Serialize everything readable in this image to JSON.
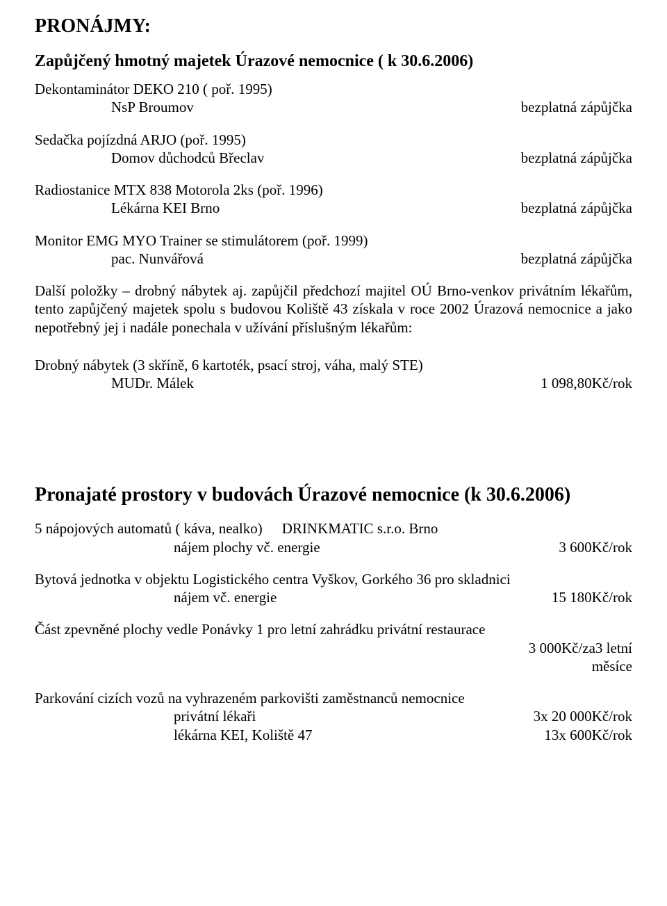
{
  "sec1": {
    "title": "PRONÁJMY:",
    "subtitle": "Zapůjčený hmotný majetek Úrazové nemocnice ( k 30.6.2006)",
    "items": [
      {
        "line1": "Dekontaminátor DEKO 210 ( poř. 1995)",
        "line2_left": "NsP Broumov",
        "line2_right": "bezplatná zápůjčka"
      },
      {
        "line1": "Sedačka pojízdná ARJO (poř. 1995)",
        "line2_left": "Domov důchodců Břeclav",
        "line2_right": "bezplatná zápůjčka"
      },
      {
        "line1": "Radiostanice MTX 838 Motorola  2ks (poř. 1996)",
        "line2_left": "Lékárna KEI Brno",
        "line2_right": "bezplatná zápůjčka"
      },
      {
        "line1": "Monitor EMG MYO Trainer se stimulátorem (poř. 1999)",
        "line2_left": "pac. Nunvářová",
        "line2_right": "bezplatná zápůjčka"
      }
    ],
    "paragraph": "Další položky – drobný nábytek aj. zapůjčil předchozí majitel OÚ Brno-venkov privátním lékařům, tento zapůjčený majetek spolu s budovou Koliště 43 získala v roce 2002 Úrazová nemocnice a jako nepotřebný jej i nadále ponechala v užívání příslušným lékařům:",
    "furniture": {
      "line1": "Drobný nábytek (3 skříně, 6 kartoték, psací stroj, váha, malý STE)",
      "line2_left": "MUDr. Málek",
      "line2_right": "1 098,80Kč/rok"
    }
  },
  "sec2": {
    "title": "Pronajaté prostory  v budovách Úrazové nemocnice (k 30.6.2006)",
    "vending": {
      "line1_left": "5 nápojových automatů ( káva, nealko)",
      "line1_right": "DRINKMATIC s.r.o. Brno",
      "line2_left": "nájem plochy vč. energie",
      "line2_right": "3 600Kč/rok"
    },
    "flat": {
      "line1": "Bytová jednotka v objektu Logistického centra Vyškov, Gorkého 36 pro skladnici",
      "line2_left": "nájem vč. energie",
      "line2_right": "15 180Kč/rok"
    },
    "garden": {
      "line1": "Část zpevněné plochy vedle Ponávky 1 pro letní zahrádku privátní restaurace",
      "line2_right_a": "3 000Kč/za3 letní",
      "line2_right_b": "měsíce"
    },
    "parking": {
      "line1": "Parkování cizích vozů na vyhrazeném parkovišti zaměstnanců nemocnice",
      "row1_left": "privátní lékaři",
      "row1_right": "3x 20 000Kč/rok",
      "row2_left": "lékárna KEI, Koliště 47",
      "row2_right": "13x 600Kč/rok"
    }
  }
}
